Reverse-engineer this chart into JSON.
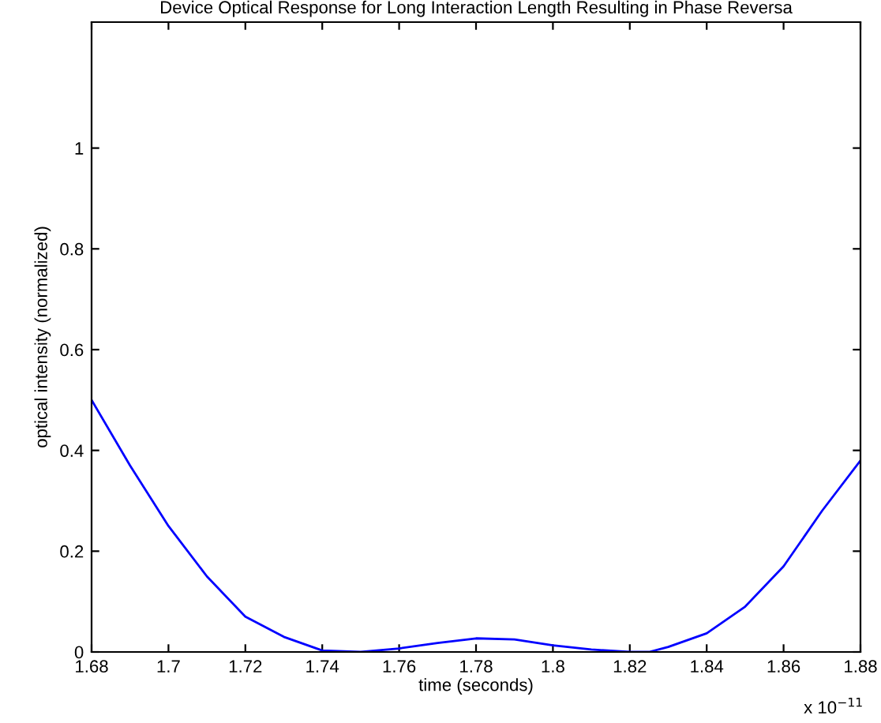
{
  "chart_data": {
    "type": "line",
    "title": "Device Optical Response for Long Interaction Length Resulting in Phase Reversa",
    "xlabel": "time (seconds)",
    "ylabel": "optical intensity (normalized)",
    "x": [
      1.68,
      1.69,
      1.7,
      1.71,
      1.72,
      1.73,
      1.74,
      1.75,
      1.76,
      1.77,
      1.78,
      1.79,
      1.8,
      1.81,
      1.82,
      1.825,
      1.83,
      1.84,
      1.85,
      1.86,
      1.87,
      1.88
    ],
    "series": [
      {
        "color": "#0000ff",
        "values": [
          0.5,
          0.37,
          0.25,
          0.15,
          0.07,
          0.03,
          0.003,
          0,
          0.007,
          0.018,
          0.027,
          0.025,
          0.013,
          0.005,
          0,
          0,
          0.01,
          0.037,
          0.09,
          0.17,
          0.28,
          0.38
        ]
      }
    ],
    "xlim": [
      1.68,
      1.88
    ],
    "xticks": [
      1.68,
      1.7,
      1.72,
      1.74,
      1.76,
      1.78,
      1.8,
      1.82,
      1.84,
      1.86,
      1.88
    ],
    "ylim": [
      0,
      1.25
    ],
    "yticks": [
      0,
      0.2,
      0.4,
      0.6,
      0.8,
      1
    ],
    "annotations": [
      "x 10$^{−11}$"
    ],
    "grid": false,
    "legend": false,
    "marker": "none",
    "line_style": "solid"
  }
}
